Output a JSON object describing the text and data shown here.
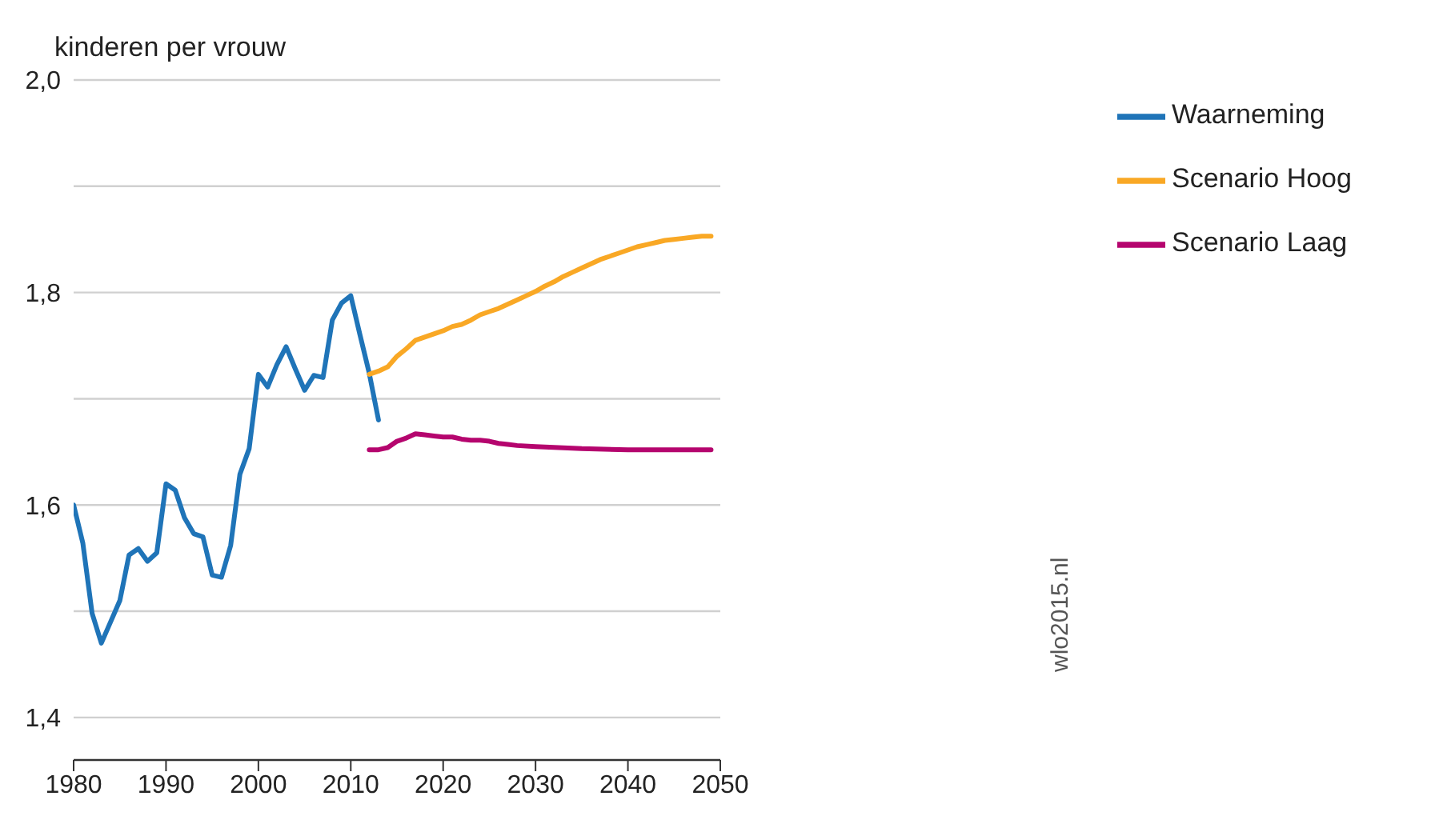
{
  "chart_data": {
    "type": "line",
    "ylabel": "kinderen per vrouw",
    "xlim": [
      1980,
      2050
    ],
    "xticks": [
      1980,
      1990,
      2000,
      2010,
      2020,
      2030,
      2040,
      2050
    ],
    "ylim": [
      1.36,
      2.0
    ],
    "yticks": [
      {
        "value": 1.4,
        "label": "1,4"
      },
      {
        "value": 1.5,
        "label": null
      },
      {
        "value": 1.6,
        "label": "1,6"
      },
      {
        "value": 1.7,
        "label": null
      },
      {
        "value": 1.8,
        "label": "1,8"
      },
      {
        "value": 1.9,
        "label": null
      },
      {
        "value": 2.0,
        "label": "2,0"
      }
    ],
    "grid": "y",
    "legend": "top right",
    "line_style": "solid",
    "marker": "none",
    "annotations": [
      "wlo2015.nl"
    ],
    "series": [
      {
        "name": "Waarneming",
        "color": "#1f74b8",
        "x": [
          1980,
          1981,
          1982,
          1983,
          1984,
          1985,
          1986,
          1987,
          1988,
          1989,
          1990,
          1991,
          1992,
          1993,
          1994,
          1995,
          1996,
          1997,
          1998,
          1999,
          2000,
          2001,
          2002,
          2003,
          2004,
          2005,
          2006,
          2007,
          2008,
          2009,
          2010,
          2011,
          2012,
          2013
        ],
        "values": [
          1.6,
          1.564,
          1.498,
          1.47,
          1.49,
          1.51,
          1.553,
          1.559,
          1.547,
          1.555,
          1.62,
          1.614,
          1.588,
          1.573,
          1.57,
          1.534,
          1.532,
          1.562,
          1.629,
          1.653,
          1.723,
          1.711,
          1.732,
          1.749,
          1.728,
          1.708,
          1.722,
          1.72,
          1.774,
          1.79,
          1.797,
          1.76,
          1.724,
          1.68
        ]
      },
      {
        "name": "Scenario Hoog",
        "color": "#f9a825",
        "x": [
          2012,
          2013,
          2014,
          2015,
          2016,
          2017,
          2018,
          2019,
          2020,
          2021,
          2022,
          2023,
          2024,
          2025,
          2026,
          2027,
          2028,
          2029,
          2030,
          2031,
          2032,
          2033,
          2034,
          2035,
          2036,
          2037,
          2038,
          2039,
          2040,
          2041,
          2042,
          2043,
          2044,
          2045,
          2046,
          2047,
          2048,
          2049
        ],
        "values": [
          1.723,
          1.726,
          1.73,
          1.74,
          1.747,
          1.755,
          1.758,
          1.761,
          1.764,
          1.768,
          1.77,
          1.774,
          1.779,
          1.782,
          1.785,
          1.789,
          1.793,
          1.797,
          1.801,
          1.806,
          1.81,
          1.815,
          1.819,
          1.823,
          1.827,
          1.831,
          1.834,
          1.837,
          1.84,
          1.843,
          1.845,
          1.847,
          1.849,
          1.85,
          1.851,
          1.852,
          1.853,
          1.853
        ]
      },
      {
        "name": "Scenario Laag",
        "color": "#b5056e",
        "x": [
          2012,
          2013,
          2014,
          2015,
          2016,
          2017,
          2018,
          2019,
          2020,
          2021,
          2022,
          2023,
          2024,
          2025,
          2026,
          2027,
          2028,
          2030,
          2035,
          2040,
          2049
        ],
        "values": [
          1.652,
          1.652,
          1.654,
          1.66,
          1.663,
          1.667,
          1.666,
          1.665,
          1.664,
          1.664,
          1.662,
          1.661,
          1.661,
          1.66,
          1.658,
          1.657,
          1.656,
          1.655,
          1.653,
          1.652,
          1.652
        ]
      }
    ]
  }
}
